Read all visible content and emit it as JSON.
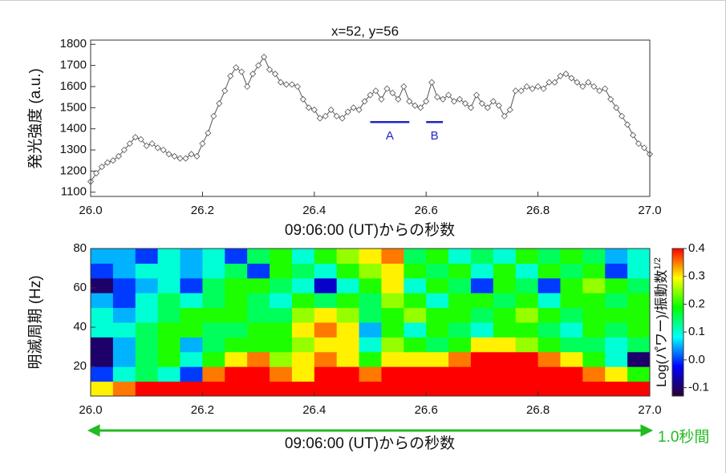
{
  "chart_data": [
    {
      "type": "line",
      "title": "x=52, y=56",
      "ylabel": "発光強度 (a.u.)",
      "xlabel": "09:06:00 (UT)からの秒数",
      "xlim": [
        26,
        27
      ],
      "xticks": [
        {
          "value": 26,
          "label": "26.0"
        },
        26.2,
        26.4,
        26.6,
        26.8,
        {
          "value": 27,
          "label": "27.0"
        }
      ],
      "ylim": [
        1080,
        1820
      ],
      "yticks": [
        1100,
        1200,
        1300,
        1400,
        1500,
        1600,
        1700,
        1800
      ],
      "x": [
        26.0,
        26.01,
        26.02,
        26.03,
        26.04,
        26.05,
        26.06,
        26.07,
        26.08,
        26.09,
        26.1,
        26.11,
        26.12,
        26.13,
        26.14,
        26.15,
        26.16,
        26.17,
        26.18,
        26.19,
        26.2,
        26.21,
        26.22,
        26.23,
        26.24,
        26.25,
        26.26,
        26.27,
        26.28,
        26.29,
        26.3,
        26.31,
        26.32,
        26.33,
        26.34,
        26.35,
        26.36,
        26.37,
        26.38,
        26.39,
        26.4,
        26.41,
        26.42,
        26.43,
        26.44,
        26.45,
        26.46,
        26.47,
        26.48,
        26.49,
        26.5,
        26.51,
        26.52,
        26.53,
        26.54,
        26.55,
        26.56,
        26.57,
        26.58,
        26.59,
        26.6,
        26.61,
        26.62,
        26.63,
        26.64,
        26.65,
        26.66,
        26.67,
        26.68,
        26.69,
        26.7,
        26.71,
        26.72,
        26.73,
        26.74,
        26.75,
        26.76,
        26.77,
        26.78,
        26.79,
        26.8,
        26.81,
        26.82,
        26.83,
        26.84,
        26.85,
        26.86,
        26.87,
        26.88,
        26.89,
        26.9,
        26.91,
        26.92,
        26.93,
        26.94,
        26.95,
        26.96,
        26.97,
        26.98,
        26.99,
        27.0
      ],
      "series": [
        {
          "color": "#555555",
          "values": [
            1150,
            1190,
            1220,
            1240,
            1250,
            1270,
            1300,
            1330,
            1360,
            1350,
            1320,
            1330,
            1310,
            1300,
            1280,
            1270,
            1260,
            1260,
            1280,
            1270,
            1330,
            1380,
            1460,
            1520,
            1580,
            1650,
            1690,
            1670,
            1600,
            1660,
            1700,
            1740,
            1680,
            1660,
            1620,
            1610,
            1610,
            1600,
            1540,
            1500,
            1490,
            1450,
            1460,
            1490,
            1460,
            1450,
            1480,
            1500,
            1490,
            1530,
            1560,
            1580,
            1540,
            1590,
            1570,
            1540,
            1600,
            1530,
            1510,
            1500,
            1530,
            1620,
            1550,
            1540,
            1560,
            1530,
            1540,
            1520,
            1500,
            1560,
            1520,
            1500,
            1530,
            1510,
            1460,
            1490,
            1580,
            1580,
            1600,
            1590,
            1600,
            1590,
            1620,
            1620,
            1650,
            1660,
            1640,
            1620,
            1600,
            1620,
            1600,
            1580,
            1590,
            1540,
            1500,
            1460,
            1420,
            1370,
            1330,
            1310,
            1280
          ]
        }
      ],
      "annotations": [
        {
          "text": "A",
          "x": [
            26.5,
            26.57
          ],
          "y": 1432,
          "color": "#2323c8"
        },
        {
          "text": "B",
          "x": [
            26.6,
            26.63
          ],
          "y": 1432,
          "color": "#2323c8"
        }
      ]
    },
    {
      "type": "heatmap",
      "ylabel": "明滅周期 (Hz)",
      "xlabel": "09:06:00 (UT)からの秒数",
      "xlim": [
        26,
        27
      ],
      "xticks": [
        {
          "value": 26,
          "label": "26.0"
        },
        26.2,
        26.4,
        26.6,
        26.8,
        {
          "value": 27,
          "label": "27.0"
        }
      ],
      "ylim": [
        5,
        80
      ],
      "yticks": [
        20,
        40,
        60,
        80
      ],
      "xbins": [
        26,
        26.04,
        26.08,
        26.12,
        26.16,
        26.2,
        26.24,
        26.28,
        26.32,
        26.36,
        26.4,
        26.44,
        26.48,
        26.52,
        26.56,
        26.6,
        26.64,
        26.68,
        26.72,
        26.76,
        26.8,
        26.84,
        26.88,
        26.92,
        26.96,
        27
      ],
      "ybins": [
        5,
        12.5,
        20,
        27.5,
        35,
        42.5,
        50,
        57.5,
        65,
        72.5,
        80
      ],
      "z": [
        [
          0.3,
          0.35,
          0.4,
          0.4,
          0.4,
          0.4,
          0.4,
          0.4,
          0.4,
          0.4,
          0.4,
          0.4,
          0.4,
          0.4,
          0.4,
          0.4,
          0.4,
          0.4,
          0.4,
          0.4,
          0.4,
          0.4,
          0.4,
          0.4,
          0.4
        ],
        [
          0.0,
          0.1,
          0.15,
          0.1,
          0.0,
          0.35,
          0.4,
          0.4,
          0.35,
          0.3,
          0.4,
          0.4,
          0.35,
          0.4,
          0.4,
          0.4,
          0.4,
          0.4,
          0.4,
          0.4,
          0.4,
          0.4,
          0.35,
          0.3,
          0.2
        ],
        [
          -0.1,
          0.05,
          0.15,
          0.2,
          0.1,
          0.2,
          0.3,
          0.35,
          0.25,
          0.3,
          0.35,
          0.3,
          0.2,
          0.3,
          0.3,
          0.3,
          0.35,
          0.4,
          0.4,
          0.4,
          0.35,
          0.3,
          0.2,
          0.1,
          -0.1
        ],
        [
          -0.1,
          0.05,
          0.15,
          0.2,
          0.05,
          0.15,
          0.2,
          0.2,
          0.2,
          0.25,
          0.3,
          0.3,
          0.1,
          0.25,
          0.2,
          0.15,
          0.2,
          0.3,
          0.3,
          0.25,
          0.2,
          0.15,
          0.15,
          0.1,
          0.15
        ],
        [
          0.1,
          0.1,
          0.15,
          0.2,
          0.2,
          0.15,
          0.15,
          0.2,
          0.2,
          0.3,
          0.35,
          0.3,
          0.05,
          0.2,
          0.1,
          0.2,
          0.15,
          0.1,
          0.2,
          0.2,
          0.15,
          0.1,
          0.2,
          0.15,
          0.2
        ],
        [
          0.1,
          0.05,
          0.1,
          0.15,
          0.2,
          0.2,
          0.2,
          0.15,
          0.15,
          0.25,
          0.3,
          0.25,
          0.15,
          0.2,
          0.25,
          0.2,
          0.2,
          0.15,
          0.2,
          0.25,
          0.2,
          0.15,
          0.2,
          0.2,
          0.2
        ],
        [
          0.05,
          0.0,
          0.1,
          0.15,
          0.1,
          0.15,
          0.2,
          0.15,
          0.1,
          0.2,
          0.15,
          0.2,
          0.15,
          0.25,
          0.2,
          0.1,
          0.2,
          0.2,
          0.15,
          0.2,
          0.1,
          0.2,
          0.2,
          0.15,
          0.2
        ],
        [
          -0.1,
          0.0,
          0.05,
          0.1,
          0.0,
          0.15,
          0.2,
          0.2,
          0.15,
          0.1,
          -0.05,
          0.1,
          0.2,
          0.3,
          0.1,
          0.2,
          0.15,
          0.0,
          0.2,
          0.15,
          0.0,
          0.2,
          0.25,
          0.2,
          0.15
        ],
        [
          0.0,
          0.05,
          0.1,
          0.1,
          0.05,
          0.1,
          0.15,
          0.0,
          0.2,
          0.15,
          0.1,
          0.2,
          0.25,
          0.3,
          0.2,
          0.15,
          0.2,
          0.1,
          0.2,
          0.1,
          0.2,
          0.15,
          0.2,
          0.0,
          0.1
        ],
        [
          0.05,
          0.05,
          0.0,
          0.1,
          0.05,
          0.1,
          0.0,
          0.15,
          0.2,
          0.1,
          0.2,
          0.25,
          0.3,
          0.35,
          0.15,
          0.2,
          0.1,
          0.15,
          0.1,
          0.2,
          0.15,
          0.2,
          0.15,
          0.05,
          0.1
        ]
      ],
      "zlim": [
        -0.13,
        0.4
      ],
      "zticks": [
        -0.1,
        {
          "value": 0,
          "label": "0.0"
        },
        0.1,
        0.2,
        0.3,
        0.4
      ],
      "colormap": [
        "#2a0030",
        "#0000ff",
        "#00ffff",
        "#00ff00",
        "#ffff00",
        "#ff0000"
      ],
      "colorbar_label": "Log(パワー)/振動数",
      "colorbar_label_sup": "1/2",
      "span_label": "1.0秒間",
      "span_color": "#22bb22"
    }
  ]
}
